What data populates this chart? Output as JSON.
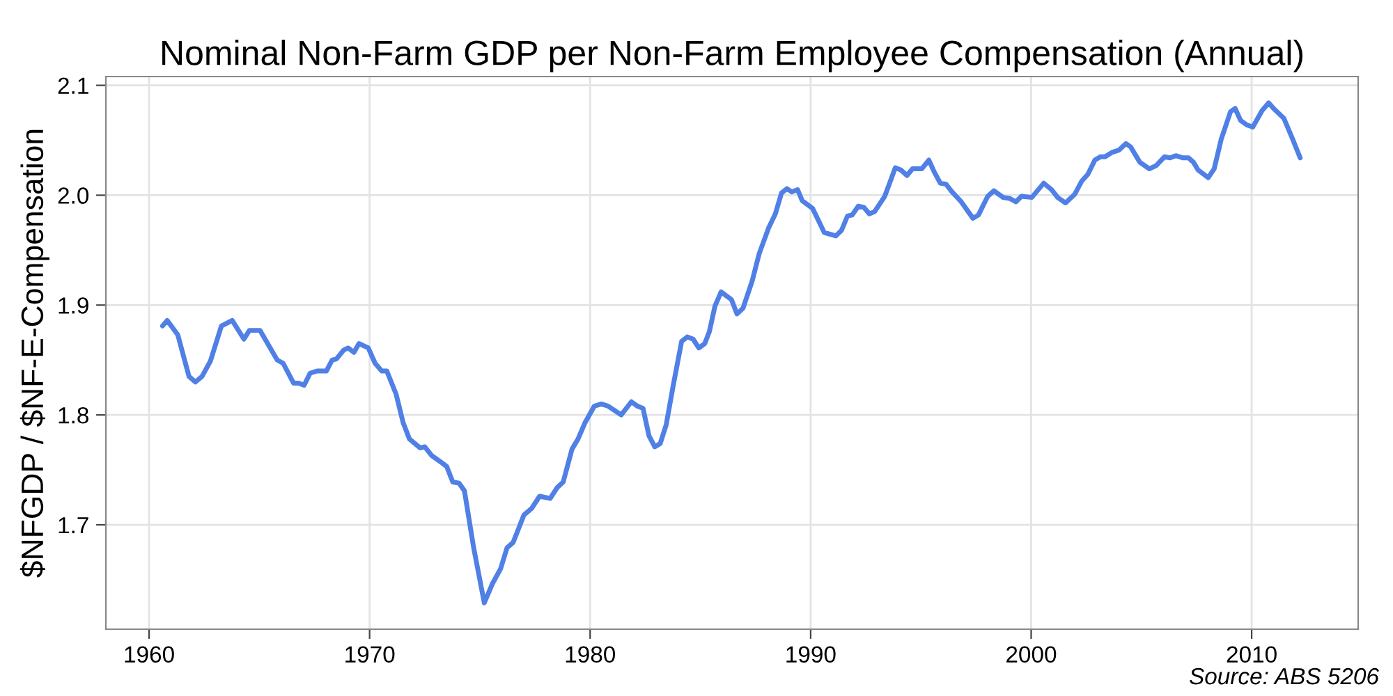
{
  "chart_data": {
    "type": "line",
    "title": "Nominal Non-Farm GDP per Non-Farm Employee Compensation (Annual)",
    "ylabel": "$NFGDP / $NF-E-Compensation",
    "annotations": [
      "Source: ABS 5206"
    ],
    "xlim": [
      1958.04,
      2014.83
    ],
    "xticks": [
      1960,
      1970,
      1980,
      1990,
      2000,
      2010
    ],
    "ylim": [
      1.605,
      2.108
    ],
    "yticks": [
      1.7,
      1.8,
      1.9,
      {
        "value": 2,
        "label": "2.0"
      },
      2.1
    ],
    "grid": true,
    "marker": "none",
    "line_style": "solid",
    "series": [
      {
        "color": "#5080e6",
        "x": [
          1960.61,
          1960.82,
          1961.3,
          1961.81,
          1962.1,
          1962.4,
          1962.78,
          1963.28,
          1963.77,
          1964.3,
          1964.55,
          1965.03,
          1965.81,
          1966.08,
          1966.55,
          1966.78,
          1967.03,
          1967.3,
          1967.62,
          1968.04,
          1968.3,
          1968.5,
          1968.82,
          1969.03,
          1969.29,
          1969.52,
          1969.94,
          1970.25,
          1970.55,
          1970.78,
          1971.2,
          1971.52,
          1971.81,
          1972.29,
          1972.5,
          1972.82,
          1973.24,
          1973.5,
          1973.77,
          1974.05,
          1974.3,
          1974.72,
          1975.2,
          1975.56,
          1975.94,
          1976.23,
          1976.51,
          1977.0,
          1977.35,
          1977.71,
          1978.19,
          1978.51,
          1978.78,
          1979.18,
          1979.45,
          1979.77,
          1980.19,
          1980.51,
          1980.82,
          1981.41,
          1981.87,
          1982.15,
          1982.4,
          1982.67,
          1982.93,
          1983.18,
          1983.45,
          1983.77,
          1984.15,
          1984.4,
          1984.67,
          1984.93,
          1985.2,
          1985.41,
          1985.66,
          1985.94,
          1986.41,
          1986.66,
          1986.93,
          1987.35,
          1987.67,
          1988.09,
          1988.4,
          1988.68,
          1988.93,
          1989.14,
          1989.41,
          1989.62,
          1990.09,
          1990.62,
          1991.14,
          1991.4,
          1991.67,
          1991.88,
          1992.16,
          1992.41,
          1992.66,
          1992.9,
          1993.36,
          1993.84,
          1994.09,
          1994.37,
          1994.62,
          1995.04,
          1995.36,
          1995.61,
          1995.88,
          1996.14,
          1996.41,
          1996.83,
          1997.36,
          1997.61,
          1998.03,
          1998.31,
          1998.73,
          1999.04,
          1999.31,
          1999.56,
          2000.03,
          2000.57,
          2000.93,
          2001.2,
          2001.56,
          2001.98,
          2002.3,
          2002.57,
          2002.89,
          2003.14,
          2003.35,
          2003.67,
          2003.98,
          2004.3,
          2004.51,
          2004.93,
          2005.36,
          2005.67,
          2006.05,
          2006.3,
          2006.56,
          2006.89,
          2007.14,
          2007.36,
          2007.57,
          2008.03,
          2008.3,
          2008.62,
          2009.04,
          2009.25,
          2009.5,
          2009.78,
          2010.05,
          2010.47,
          2010.77,
          2011.04,
          2011.46,
          2011.82,
          2012.2
        ],
        "values": [
          1.881,
          1.886,
          1.873,
          1.835,
          1.83,
          1.835,
          1.849,
          1.881,
          1.886,
          1.869,
          1.877,
          1.877,
          1.85,
          1.847,
          1.829,
          1.829,
          1.827,
          1.838,
          1.84,
          1.84,
          1.85,
          1.851,
          1.859,
          1.861,
          1.857,
          1.865,
          1.861,
          1.847,
          1.84,
          1.84,
          1.819,
          1.793,
          1.778,
          1.77,
          1.771,
          1.763,
          1.757,
          1.753,
          1.739,
          1.738,
          1.731,
          1.679,
          1.629,
          1.646,
          1.66,
          1.679,
          1.684,
          1.709,
          1.715,
          1.726,
          1.724,
          1.734,
          1.739,
          1.769,
          1.778,
          1.793,
          1.808,
          1.81,
          1.808,
          1.8,
          1.812,
          1.808,
          1.806,
          1.781,
          1.771,
          1.774,
          1.791,
          1.827,
          1.867,
          1.871,
          1.869,
          1.861,
          1.865,
          1.876,
          1.899,
          1.912,
          1.905,
          1.892,
          1.897,
          1.922,
          1.947,
          1.97,
          1.983,
          2.002,
          2.006,
          2.003,
          2.005,
          1.995,
          1.988,
          1.966,
          1.963,
          1.968,
          1.981,
          1.982,
          1.99,
          1.989,
          1.983,
          1.985,
          1.999,
          2.025,
          2.023,
          2.018,
          2.024,
          2.024,
          2.032,
          2.021,
          2.011,
          2.01,
          2.003,
          1.994,
          1.979,
          1.982,
          1.999,
          2.004,
          1.998,
          1.997,
          1.994,
          1.999,
          1.998,
          2.011,
          2.005,
          1.998,
          1.993,
          2.001,
          2.013,
          2.019,
          2.032,
          2.035,
          2.035,
          2.039,
          2.041,
          2.047,
          2.044,
          2.03,
          2.024,
          2.027,
          2.035,
          2.034,
          2.036,
          2.034,
          2.034,
          2.03,
          2.023,
          2.016,
          2.024,
          2.051,
          2.076,
          2.079,
          2.068,
          2.064,
          2.062,
          2.077,
          2.084,
          2.078,
          2.07,
          2.053,
          2.034
        ]
      }
    ]
  }
}
